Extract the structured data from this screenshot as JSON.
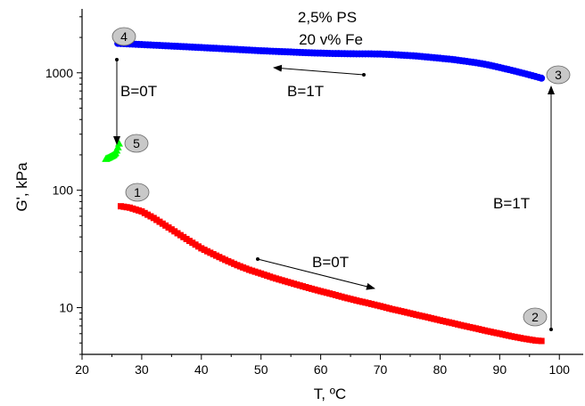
{
  "chart_data": {
    "type": "scatter",
    "title": "2,5% PS",
    "subtitle": "20 v% Fe",
    "xlabel": "T, ºC",
    "ylabel": "G', kPa",
    "xlim": [
      20,
      104
    ],
    "ylim": [
      4,
      3500
    ],
    "yscale": "log",
    "xticks": [
      20,
      30,
      40,
      50,
      60,
      70,
      80,
      90,
      100
    ],
    "yticks": [
      10,
      100,
      1000
    ],
    "grid": false,
    "legend": "none",
    "series": [
      {
        "color": "#ff0000",
        "marker": "square",
        "x": [
          26.5,
          28,
          30,
          32,
          34,
          36,
          38,
          40,
          42,
          44,
          46,
          48,
          50,
          52,
          54,
          56,
          58,
          60,
          62,
          64,
          66,
          68,
          70,
          72,
          74,
          76,
          78,
          80,
          82,
          84,
          86,
          88,
          90,
          92,
          94,
          96,
          97
        ],
        "y": [
          73,
          71,
          66,
          58,
          50,
          43,
          37,
          32,
          28.5,
          25.5,
          23,
          21,
          19.5,
          18,
          16.8,
          15.7,
          14.7,
          13.8,
          13,
          12.2,
          11.5,
          10.9,
          10.3,
          9.7,
          9.2,
          8.7,
          8.25,
          7.8,
          7.4,
          7.0,
          6.65,
          6.3,
          6.0,
          5.7,
          5.45,
          5.25,
          5.2
        ]
      },
      {
        "color": "#0000ff",
        "marker": "circle",
        "x": [
          26,
          28,
          30,
          32,
          34,
          36,
          38,
          40,
          42,
          44,
          46,
          48,
          50,
          52,
          54,
          56,
          58,
          60,
          62,
          64,
          66,
          68,
          70,
          72,
          74,
          76,
          78,
          80,
          82,
          84,
          86,
          88,
          90,
          92,
          94,
          96,
          97
        ],
        "y": [
          1780,
          1760,
          1740,
          1720,
          1700,
          1680,
          1660,
          1640,
          1620,
          1600,
          1580,
          1560,
          1540,
          1525,
          1510,
          1495,
          1480,
          1470,
          1460,
          1455,
          1450,
          1450,
          1445,
          1430,
          1410,
          1390,
          1360,
          1330,
          1300,
          1260,
          1220,
          1170,
          1110,
          1050,
          990,
          930,
          900
        ]
      },
      {
        "color": "#00ff00",
        "marker": "triangle",
        "x": [
          24,
          24.5,
          25,
          25.3,
          25.6,
          25.8,
          26,
          26.2
        ],
        "y": [
          185,
          190,
          196,
          200,
          208,
          218,
          232,
          250
        ]
      }
    ],
    "point_labels": [
      "1",
      "2",
      "3",
      "4",
      "5"
    ],
    "annotations": [
      "B=0T",
      "B=1T",
      "B=0T",
      "B=1T"
    ],
    "colors": {
      "series_1": "#ff0000",
      "series_2": "#0000ff",
      "series_3": "#00ff00",
      "marker_fill": "#c8c8c8"
    }
  }
}
